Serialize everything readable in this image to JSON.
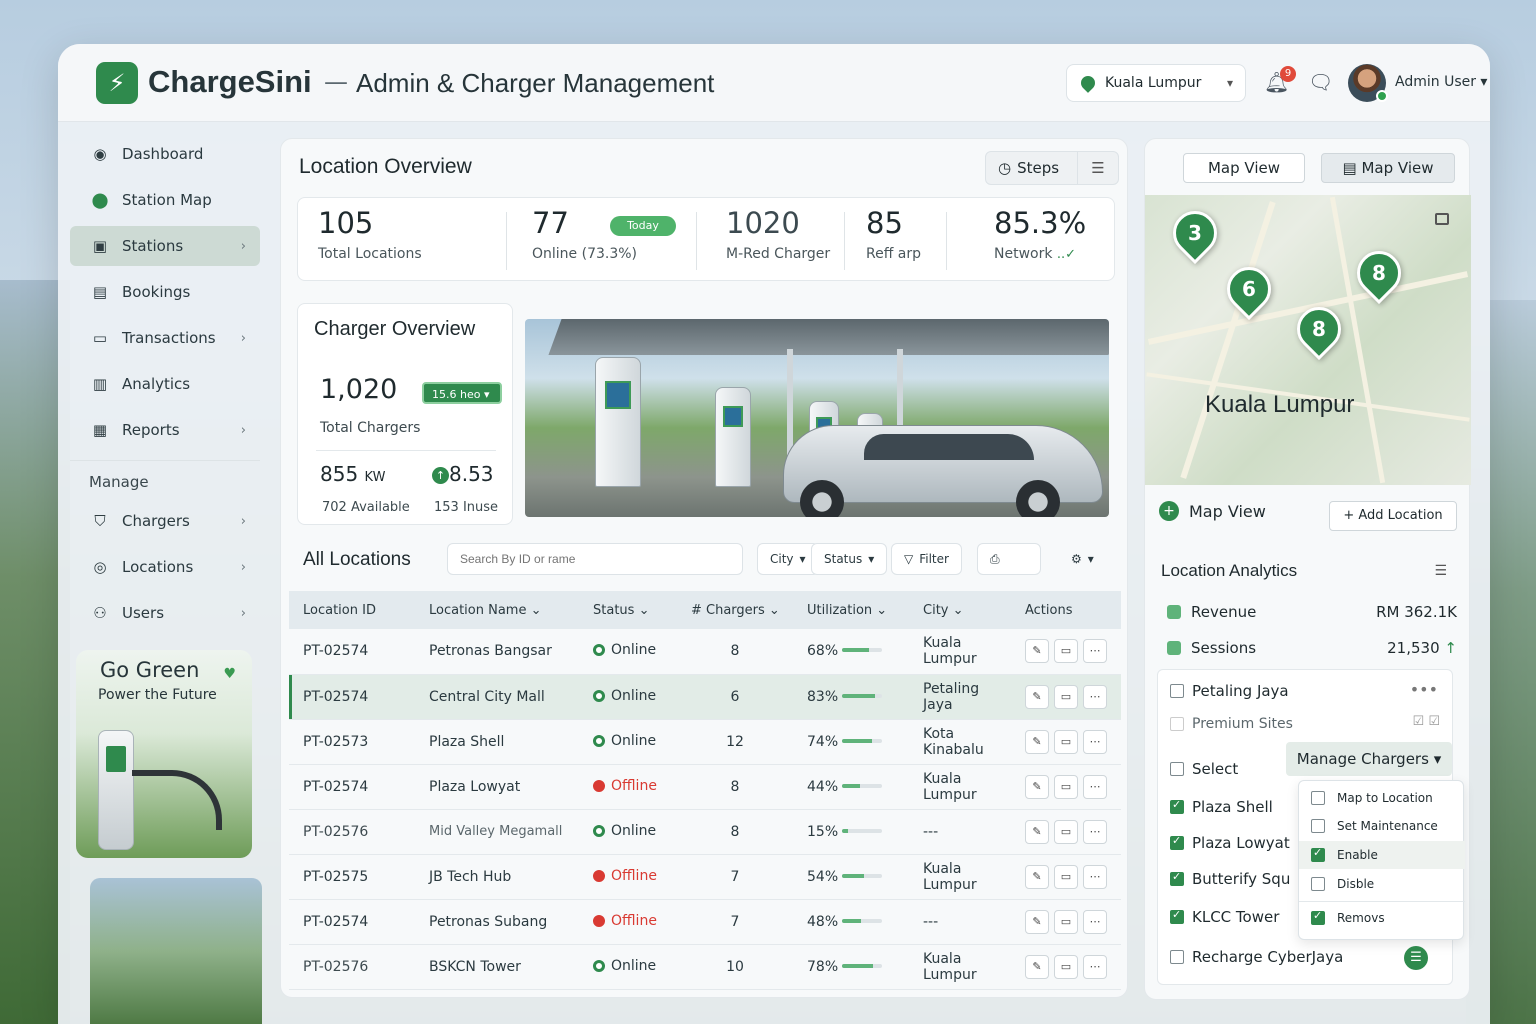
{
  "header": {
    "brand": "ChargeSini",
    "subtitle": "Admin & Charger Management",
    "separator": "—",
    "city": "Kuala Lumpur",
    "notif_count": "9",
    "user": "Admin User"
  },
  "sidebar": {
    "items": [
      {
        "label": "Dashboard",
        "icon": "dashboard-icon"
      },
      {
        "label": "Station Map",
        "icon": "map-pin-icon"
      },
      {
        "label": "Stations",
        "icon": "stations-icon"
      },
      {
        "label": "Bookings",
        "icon": "bookings-icon"
      },
      {
        "label": "Transactions",
        "icon": "transactions-icon"
      },
      {
        "label": "Analytics",
        "icon": "analytics-icon"
      },
      {
        "label": "Reports",
        "icon": "reports-icon"
      }
    ],
    "section": "Manage",
    "manage_items": [
      {
        "label": "Chargers",
        "icon": "chargers-icon"
      },
      {
        "label": "Locations",
        "icon": "location-icon"
      },
      {
        "label": "Users",
        "icon": "users-icon"
      }
    ],
    "promo_title": "Go Green",
    "promo_sub": "Power the Future"
  },
  "overview": {
    "title": "Location Overview",
    "steps_label": "Steps",
    "stats": [
      {
        "value": "105",
        "label": "Total Locations"
      },
      {
        "value": "77",
        "label": "Online  (73.3%)",
        "badge": "Today"
      },
      {
        "value": "1020",
        "label": "M-Red Charger"
      },
      {
        "value": "85",
        "label": "Reff arp"
      },
      {
        "value": "85.3%",
        "label": "Network"
      }
    ]
  },
  "charger_overview": {
    "title": "Charger Overview",
    "total": "1,020",
    "total_label": "Total Chargers",
    "badge": "15.6 heo",
    "kw": "855",
    "kw_unit": "KW",
    "rate": "8.53",
    "available": "702 Available",
    "inuse": "153 Inuse"
  },
  "locations_table": {
    "title": "All Locations",
    "search_placeholder": "Search By ID or rame",
    "filters": {
      "city": "City",
      "status": "Status",
      "filter": "Filter"
    },
    "columns": [
      "Location ID",
      "Location Name",
      "Status",
      "# Chargers",
      "Utilization",
      "City",
      "Actions"
    ],
    "rows": [
      {
        "id": "PT-02574",
        "name": "Petronas Bangsar",
        "status": "Online",
        "chargers": "8",
        "util": "68%",
        "util_frac": 0.68,
        "city": "Kuala Lumpur"
      },
      {
        "id": "PT-02574",
        "name": "Central City Mall",
        "status": "Online",
        "chargers": "6",
        "util": "83%",
        "util_frac": 0.83,
        "city": "Petaling Jaya"
      },
      {
        "id": "PT-02573",
        "name": "Plaza Shell",
        "status": "Online",
        "chargers": "12",
        "util": "74%",
        "util_frac": 0.74,
        "city": "Kota Kinabalu"
      },
      {
        "id": "PT-02574",
        "name": "Plaza Lowyat",
        "status": "Offline",
        "chargers": "8",
        "util": "44%",
        "util_frac": 0.44,
        "city": "Kuala Lumpur"
      },
      {
        "id": "PT-02576",
        "name": "Mid Valley Megamall",
        "status": "Online",
        "chargers": "8",
        "util": "15%",
        "util_frac": 0.15,
        "city": "---"
      },
      {
        "id": "PT-02575",
        "name": "JB Tech Hub",
        "status": "Offline",
        "chargers": "7",
        "util": "54%",
        "util_frac": 0.54,
        "city": "Kuala Lumpur"
      },
      {
        "id": "PT-02574",
        "name": "Petronas Subang",
        "status": "Offline",
        "chargers": "7",
        "util": "48%",
        "util_frac": 0.48,
        "city": "---"
      },
      {
        "id": "PT-02576",
        "name": "BSKCN Tower",
        "status": "Online",
        "chargers": "10",
        "util": "78%",
        "util_frac": 0.78,
        "city": "Kuala Lumpur"
      }
    ]
  },
  "right": {
    "map_tab1": "Map View",
    "map_tab2": "Map View",
    "map_city": "Kuala Lumpur",
    "markers": [
      "3",
      "6",
      "8",
      "8"
    ],
    "map_view_label": "Map View",
    "add_location": "+ Add Location",
    "analytics_title": "Location Analytics",
    "revenue_label": "Revenue",
    "revenue_value": "RM 362.1K",
    "sessions_label": "Sessions",
    "sessions_value": "21,530",
    "group": "Petaling Jaya",
    "premium": "Premium Sites",
    "select_label": "Select",
    "manage_label": "Manage Chargers",
    "list": [
      "Plaza Shell",
      "Plaza Lowyat",
      "Butterify Squ",
      "KLCC Tower",
      "Recharge CyberJaya"
    ],
    "dropdown": [
      "Map to Location",
      "Set Maintenance",
      "Enable",
      "Disble",
      "Removs"
    ]
  },
  "colors": {
    "accent": "#2f8a4d",
    "offline": "#d93a32"
  }
}
